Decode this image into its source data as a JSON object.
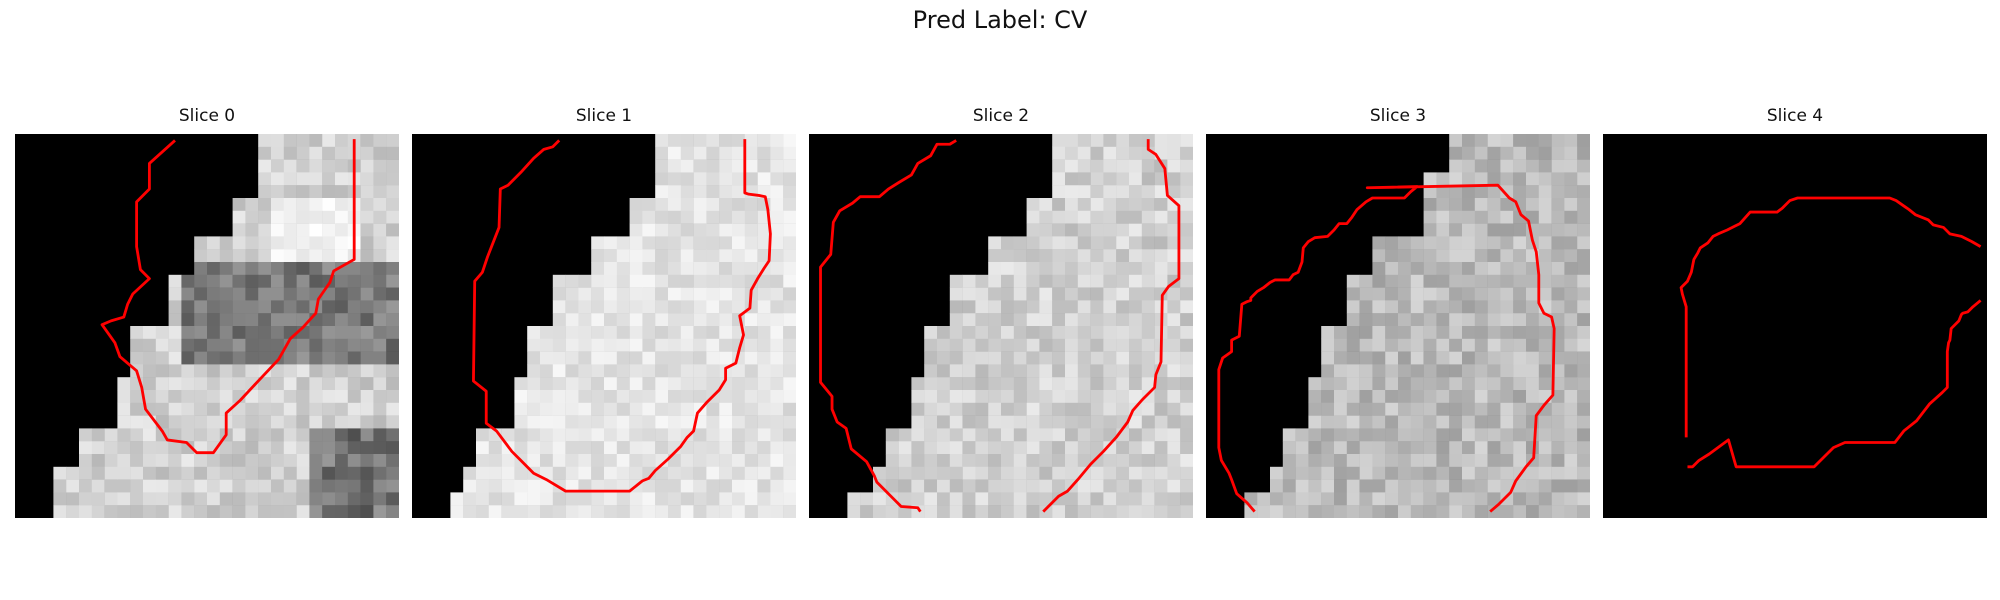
{
  "figure": {
    "title": "Pred Label: CV",
    "slices": [
      {
        "title": "Slice 0"
      },
      {
        "title": "Slice 1"
      },
      {
        "title": "Slice 2"
      },
      {
        "title": "Slice 3"
      },
      {
        "title": "Slice 4"
      }
    ]
  },
  "colors": {
    "background": "#ffffff",
    "contour": "#ff0000",
    "mask": "#000000"
  }
}
